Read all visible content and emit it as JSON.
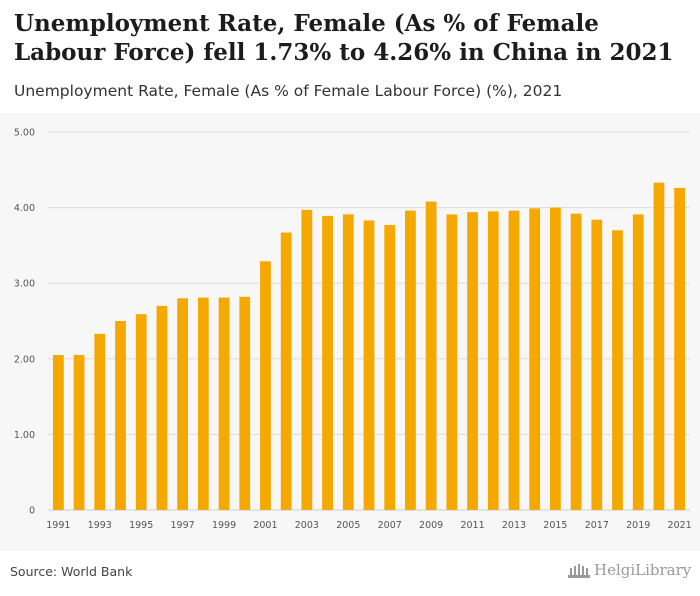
{
  "header": {
    "title": "Unemployment Rate, Female (As % of Female Labour Force) fell 1.73% to 4.26% in China in 2021",
    "subtitle": "Unemployment Rate, Female (As % of Female Labour Force) (%), 2021"
  },
  "footer": {
    "source": "Source: World Bank",
    "brand": "HelgiLibrary"
  },
  "colors": {
    "bar": "#f5a800",
    "grid": "#dddddd",
    "axis_text": "#555555"
  },
  "chart_data": {
    "type": "bar",
    "title": "Unemployment Rate, Female (As % of Female Labour Force) fell 1.73% to 4.26% in China in 2021",
    "subtitle": "Unemployment Rate, Female (As % of Female Labour Force) (%), 2021",
    "xlabel": "",
    "ylabel": "",
    "ylim": [
      0,
      5
    ],
    "yticks": [
      "0",
      "1.00",
      "2.00",
      "3.00",
      "4.00",
      "5.00"
    ],
    "grid": true,
    "categories": [
      "1991",
      "1992",
      "1993",
      "1994",
      "1995",
      "1996",
      "1997",
      "1998",
      "1999",
      "2000",
      "2001",
      "2002",
      "2003",
      "2004",
      "2005",
      "2006",
      "2007",
      "2008",
      "2009",
      "2010",
      "2011",
      "2012",
      "2013",
      "2014",
      "2015",
      "2016",
      "2017",
      "2018",
      "2019",
      "2020",
      "2021"
    ],
    "xtick_labels": [
      "1991",
      "1993",
      "1995",
      "1997",
      "1999",
      "2001",
      "2003",
      "2005",
      "2007",
      "2009",
      "2011",
      "2013",
      "2015",
      "2017",
      "2019",
      "2021"
    ],
    "values": [
      2.05,
      2.05,
      2.33,
      2.5,
      2.59,
      2.7,
      2.8,
      2.81,
      2.81,
      2.82,
      3.29,
      3.67,
      3.97,
      3.89,
      3.91,
      3.83,
      3.77,
      3.96,
      4.08,
      3.91,
      3.94,
      3.95,
      3.96,
      3.99,
      4.0,
      3.92,
      3.84,
      3.7,
      3.91,
      4.33,
      4.26
    ]
  }
}
